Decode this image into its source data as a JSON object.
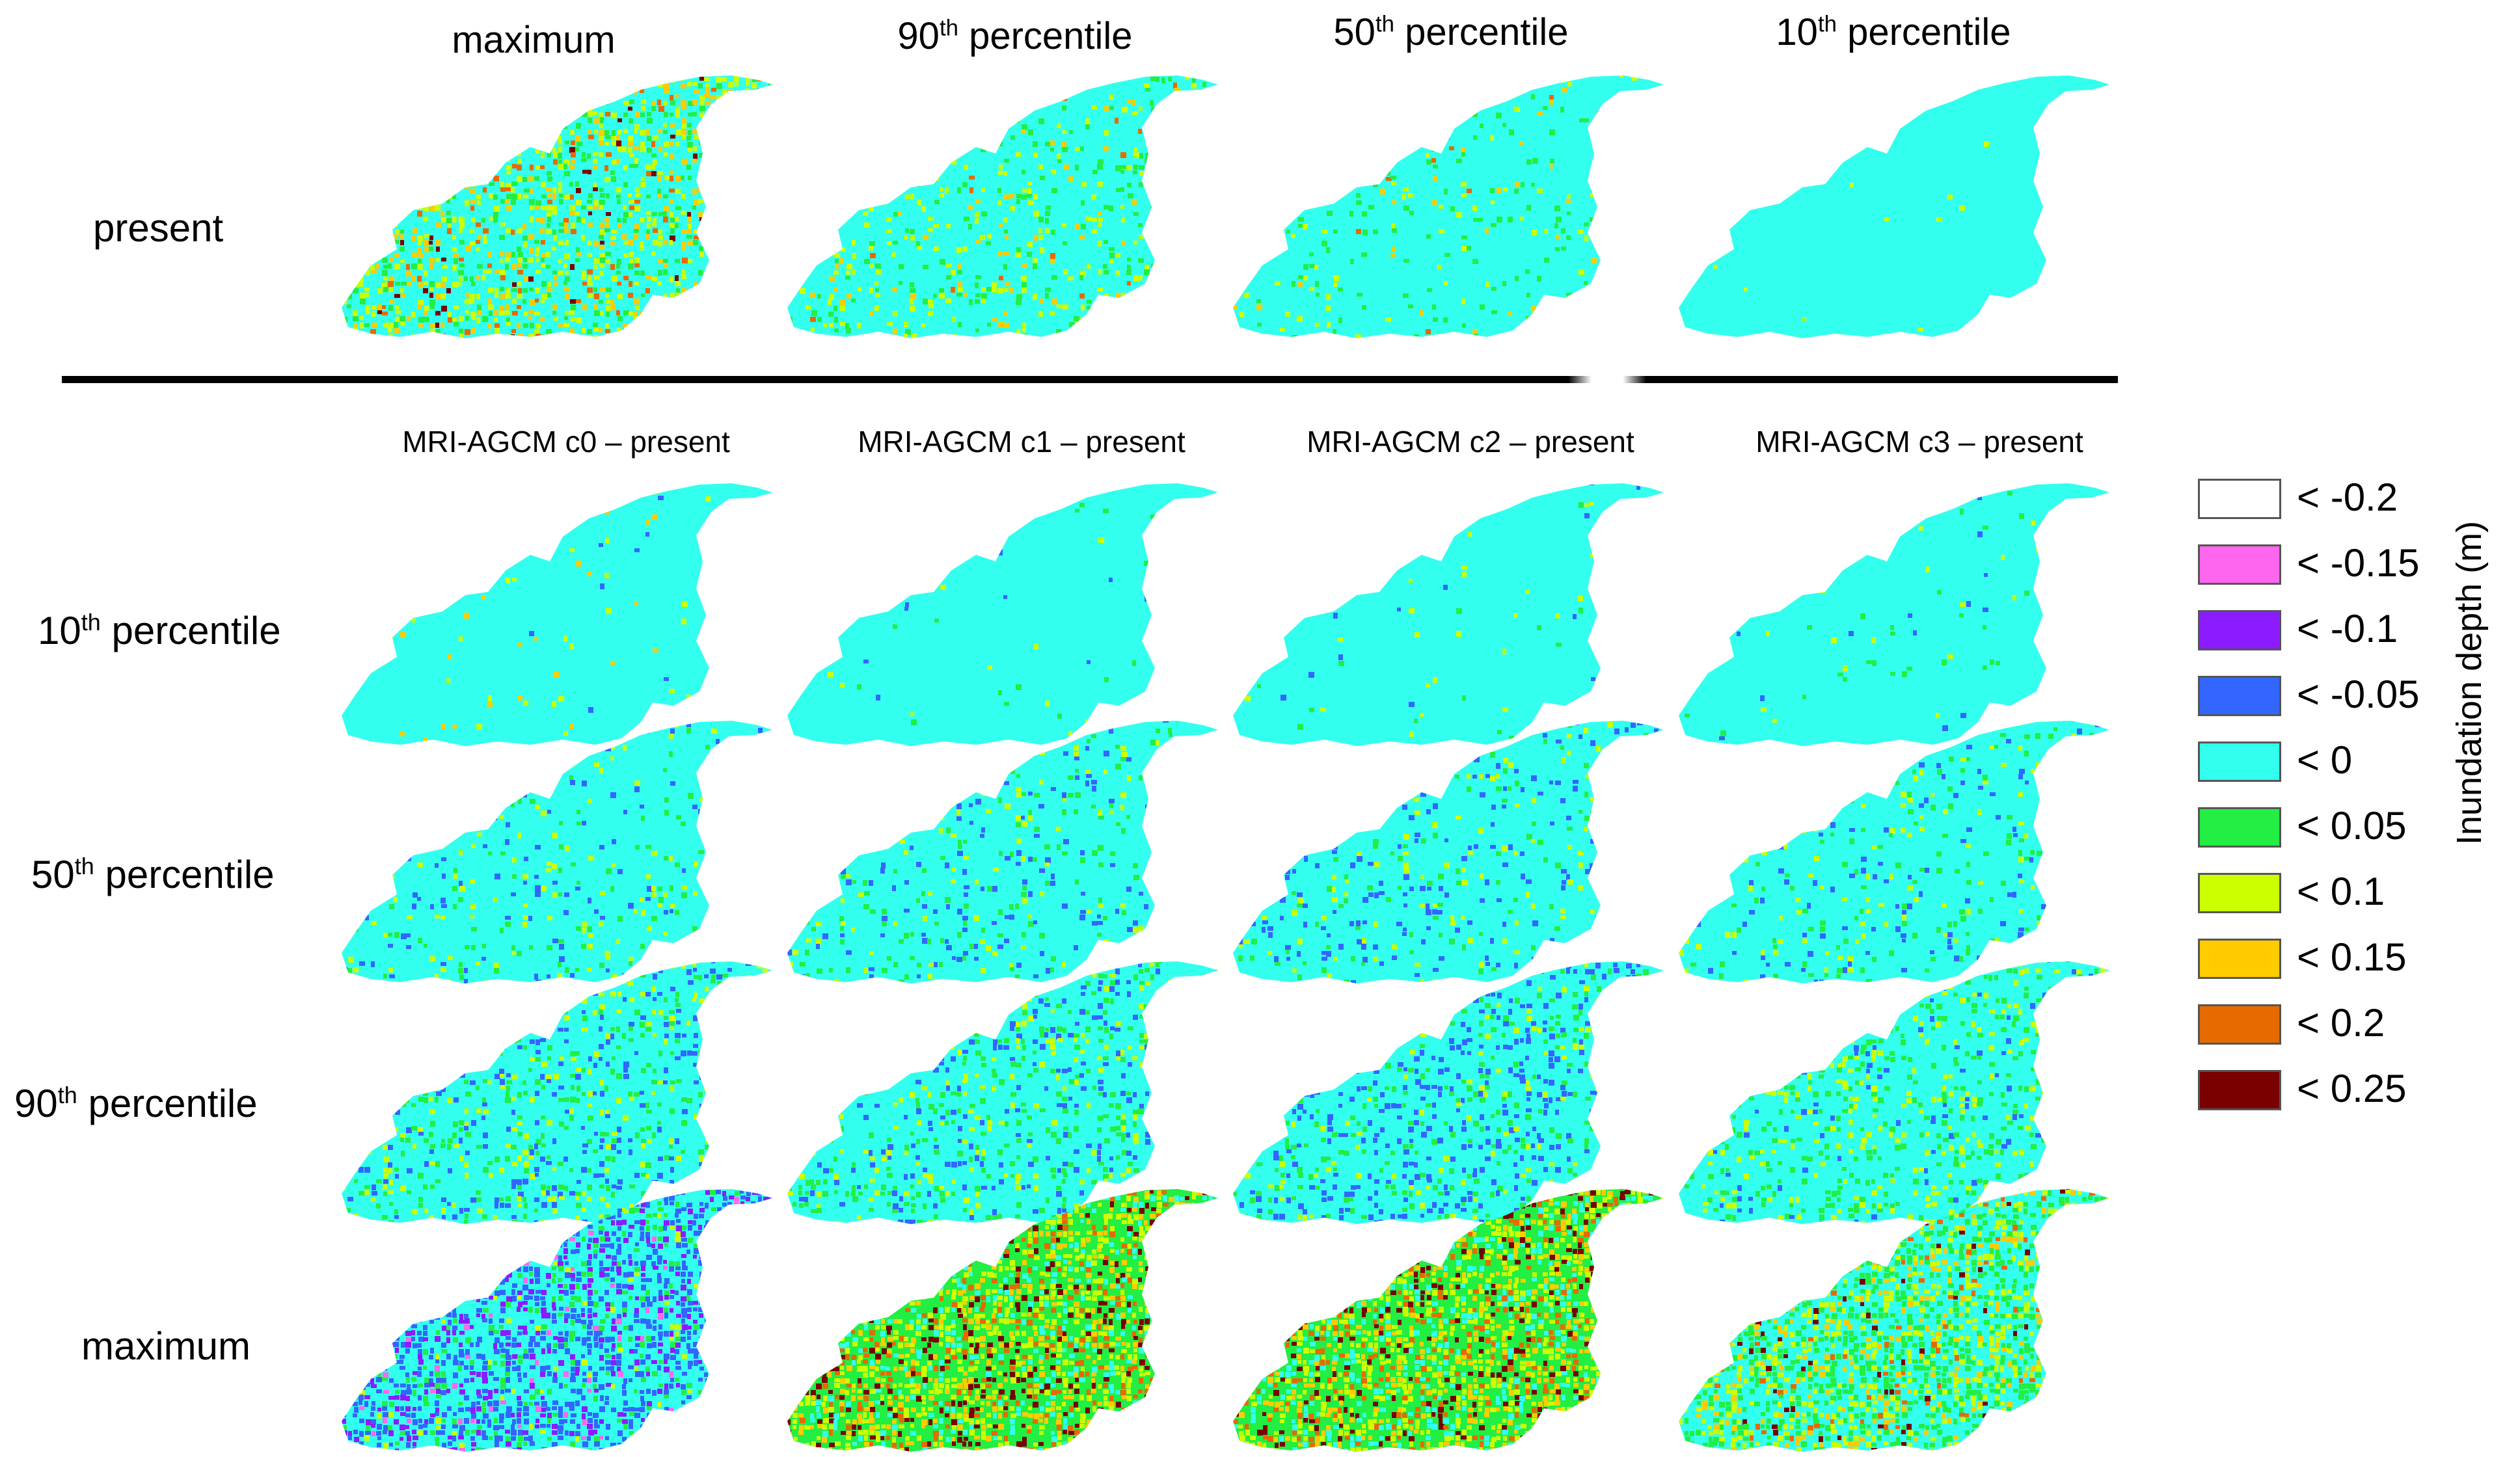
{
  "column_headers": [
    {
      "main": "maximum",
      "sup": "",
      "rest": ""
    },
    {
      "main": "90",
      "sup": "th",
      "rest": " percentile"
    },
    {
      "main": "50",
      "sup": "th",
      "rest": " percentile"
    },
    {
      "main": "10",
      "sup": "th",
      "rest": " percentile"
    }
  ],
  "top_row_label": "present",
  "sub_headers": [
    "MRI-AGCM c0 – present",
    "MRI-AGCM c1 – present",
    "MRI-AGCM c2 – present",
    "MRI-AGCM c3 – present"
  ],
  "row_labels": [
    {
      "main": "10",
      "sup": "th",
      "rest": " percentile"
    },
    {
      "main": "50",
      "sup": "th",
      "rest": " percentile"
    },
    {
      "main": "90",
      "sup": "th",
      "rest": " percentile"
    },
    {
      "main": "maximum",
      "sup": "",
      "rest": ""
    }
  ],
  "legend": {
    "title": "Inundation depth (m)",
    "items": [
      {
        "label": "< -0.2",
        "color": "#ffffff"
      },
      {
        "label": "< -0.15",
        "color": "#ff66ee"
      },
      {
        "label": "< -0.1",
        "color": "#8c1cff"
      },
      {
        "label": "< -0.05",
        "color": "#3366ff"
      },
      {
        "label": "<  0",
        "color": "#33ffee"
      },
      {
        "label": "<  0.05",
        "color": "#22ee44"
      },
      {
        "label": "< 0.1",
        "color": "#ccff00"
      },
      {
        "label": "< 0.15",
        "color": "#ffcc00"
      },
      {
        "label": "<  0.2",
        "color": "#e66a00"
      },
      {
        "label": "< 0.25",
        "color": "#7a0000"
      }
    ]
  },
  "maps": {
    "present": [
      {
        "name": "present-maximum",
        "mix": [
          [
            "#33ffee",
            0.52
          ],
          [
            "#22ee44",
            0.12
          ],
          [
            "#ccff00",
            0.2
          ],
          [
            "#ffcc00",
            0.1
          ],
          [
            "#e66a00",
            0.04
          ],
          [
            "#7a0000",
            0.02
          ]
        ]
      },
      {
        "name": "present-90th",
        "mix": [
          [
            "#33ffee",
            0.8
          ],
          [
            "#22ee44",
            0.08
          ],
          [
            "#ccff00",
            0.08
          ],
          [
            "#ffcc00",
            0.03
          ],
          [
            "#e66a00",
            0.01
          ]
        ]
      },
      {
        "name": "present-50th",
        "mix": [
          [
            "#33ffee",
            0.9
          ],
          [
            "#22ee44",
            0.05
          ],
          [
            "#ccff00",
            0.03
          ],
          [
            "#ffcc00",
            0.015
          ],
          [
            "#e66a00",
            0.005
          ]
        ]
      },
      {
        "name": "present-10th",
        "mix": [
          [
            "#33ffee",
            0.995
          ],
          [
            "#ccff00",
            0.005
          ]
        ]
      }
    ],
    "difference": [
      [
        {
          "name": "c0-10th",
          "mix": [
            [
              "#33ffee",
              0.97
            ],
            [
              "#ccff00",
              0.015
            ],
            [
              "#ffcc00",
              0.01
            ],
            [
              "#3366ff",
              0.005
            ]
          ]
        },
        {
          "name": "c1-10th",
          "mix": [
            [
              "#33ffee",
              0.975
            ],
            [
              "#22ee44",
              0.01
            ],
            [
              "#ccff00",
              0.01
            ],
            [
              "#3366ff",
              0.005
            ]
          ]
        },
        {
          "name": "c2-10th",
          "mix": [
            [
              "#33ffee",
              0.975
            ],
            [
              "#22ee44",
              0.01
            ],
            [
              "#ccff00",
              0.01
            ],
            [
              "#3366ff",
              0.005
            ]
          ]
        },
        {
          "name": "c3-10th",
          "mix": [
            [
              "#33ffee",
              0.965
            ],
            [
              "#22ee44",
              0.01
            ],
            [
              "#ccff00",
              0.015
            ],
            [
              "#3366ff",
              0.01
            ]
          ]
        }
      ],
      [
        {
          "name": "c0-50th",
          "mix": [
            [
              "#33ffee",
              0.86
            ],
            [
              "#22ee44",
              0.05
            ],
            [
              "#ccff00",
              0.05
            ],
            [
              "#3366ff",
              0.04
            ]
          ]
        },
        {
          "name": "c1-50th",
          "mix": [
            [
              "#33ffee",
              0.84
            ],
            [
              "#22ee44",
              0.06
            ],
            [
              "#ccff00",
              0.04
            ],
            [
              "#3366ff",
              0.06
            ]
          ]
        },
        {
          "name": "c2-50th",
          "mix": [
            [
              "#33ffee",
              0.84
            ],
            [
              "#22ee44",
              0.05
            ],
            [
              "#ccff00",
              0.04
            ],
            [
              "#3366ff",
              0.07
            ]
          ]
        },
        {
          "name": "c3-50th",
          "mix": [
            [
              "#33ffee",
              0.86
            ],
            [
              "#22ee44",
              0.05
            ],
            [
              "#ccff00",
              0.04
            ],
            [
              "#3366ff",
              0.05
            ]
          ]
        }
      ],
      [
        {
          "name": "c0-90th",
          "mix": [
            [
              "#33ffee",
              0.72
            ],
            [
              "#22ee44",
              0.11
            ],
            [
              "#ccff00",
              0.08
            ],
            [
              "#3366ff",
              0.09
            ]
          ]
        },
        {
          "name": "c1-90th",
          "mix": [
            [
              "#33ffee",
              0.72
            ],
            [
              "#22ee44",
              0.13
            ],
            [
              "#ccff00",
              0.07
            ],
            [
              "#3366ff",
              0.08
            ]
          ]
        },
        {
          "name": "c2-90th",
          "mix": [
            [
              "#33ffee",
              0.7
            ],
            [
              "#22ee44",
              0.1
            ],
            [
              "#ccff00",
              0.05
            ],
            [
              "#3366ff",
              0.15
            ]
          ]
        },
        {
          "name": "c3-90th",
          "mix": [
            [
              "#33ffee",
              0.72
            ],
            [
              "#22ee44",
              0.14
            ],
            [
              "#ccff00",
              0.1
            ],
            [
              "#3366ff",
              0.04
            ]
          ]
        }
      ],
      [
        {
          "name": "c0-maximum",
          "mix": [
            [
              "#33ffee",
              0.4
            ],
            [
              "#3366ff",
              0.3
            ],
            [
              "#8c1cff",
              0.14
            ],
            [
              "#22ee44",
              0.1
            ],
            [
              "#ff66ee",
              0.03
            ],
            [
              "#ccff00",
              0.03
            ]
          ]
        },
        {
          "name": "c1-maximum",
          "mix": [
            [
              "#22ee44",
              0.3
            ],
            [
              "#ccff00",
              0.22
            ],
            [
              "#ffcc00",
              0.14
            ],
            [
              "#e66a00",
              0.1
            ],
            [
              "#7a0000",
              0.12
            ],
            [
              "#33ffee",
              0.12
            ]
          ]
        },
        {
          "name": "c2-maximum",
          "mix": [
            [
              "#22ee44",
              0.3
            ],
            [
              "#ccff00",
              0.22
            ],
            [
              "#ffcc00",
              0.14
            ],
            [
              "#e66a00",
              0.1
            ],
            [
              "#7a0000",
              0.1
            ],
            [
              "#33ffee",
              0.14
            ]
          ]
        },
        {
          "name": "c3-maximum",
          "mix": [
            [
              "#33ffee",
              0.36
            ],
            [
              "#22ee44",
              0.3
            ],
            [
              "#ccff00",
              0.2
            ],
            [
              "#ffcc00",
              0.08
            ],
            [
              "#e66a00",
              0.03
            ],
            [
              "#7a0000",
              0.03
            ]
          ]
        }
      ]
    ]
  }
}
